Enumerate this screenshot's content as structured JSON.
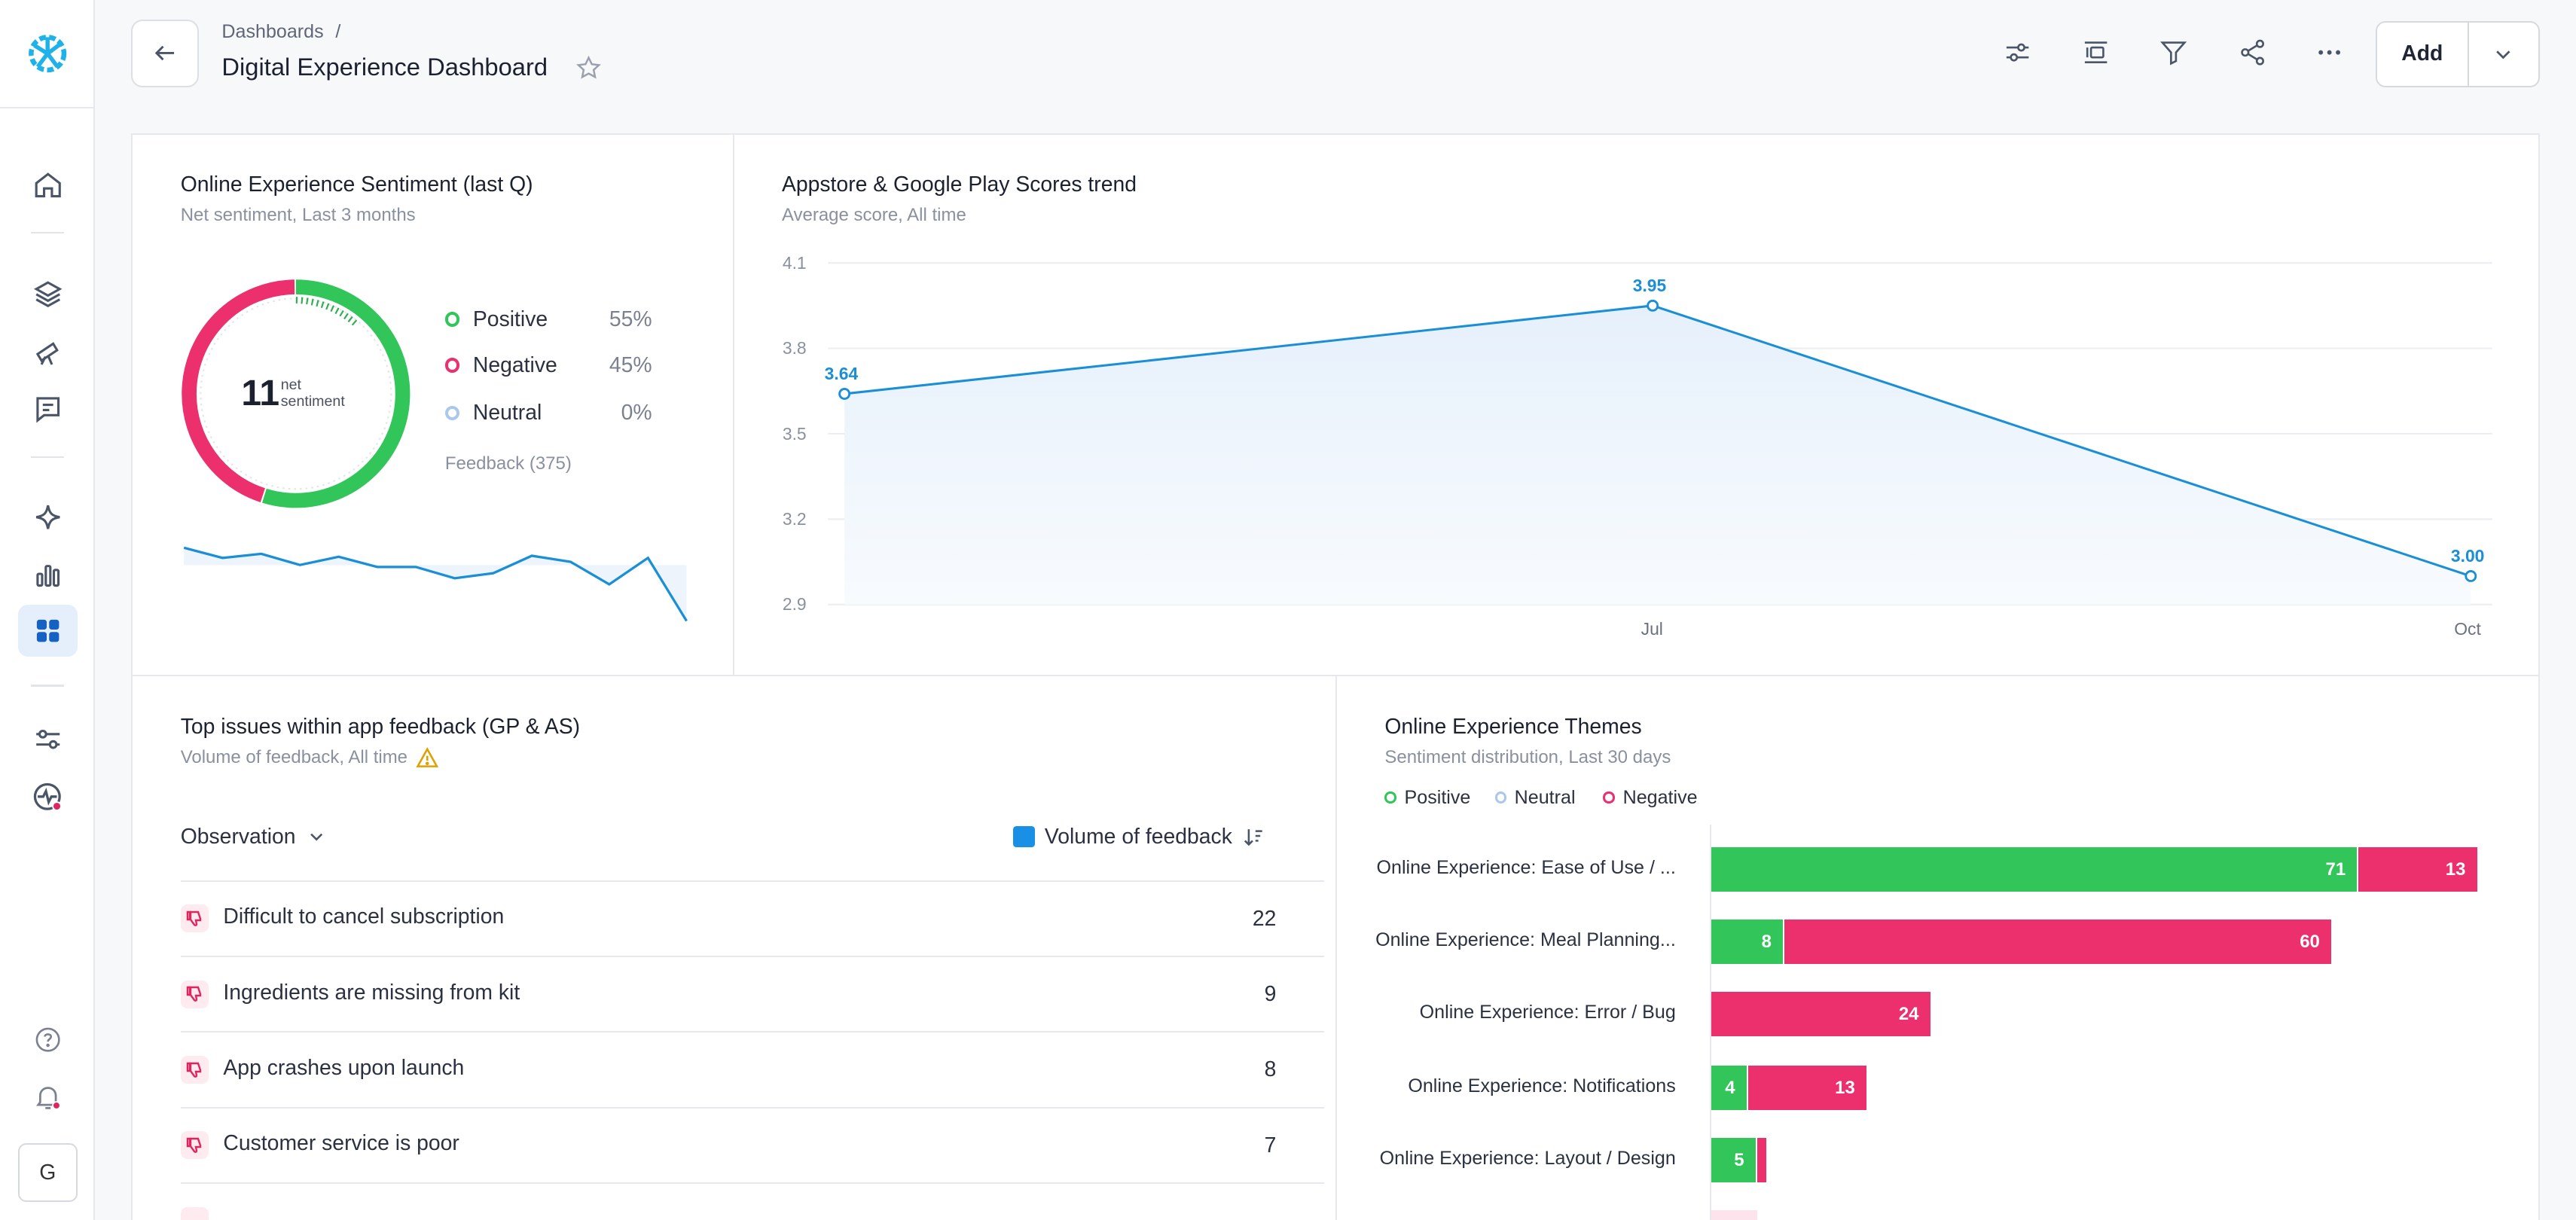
{
  "header": {
    "breadcrumb": "Dashboards",
    "breadcrumb_sep": "/",
    "title": "Digital Experience Dashboard",
    "add_label": "Add"
  },
  "sidebar": {
    "avatar_initial": "G",
    "items": [
      "home-icon",
      "layers-icon",
      "telescope-icon",
      "message-icon",
      "sparkle-icon",
      "bar-chart-icon",
      "dashboard-grid-icon",
      "sliders-icon",
      "pulse-icon",
      "help-icon",
      "bell-icon"
    ]
  },
  "sentiment": {
    "title": "Online Experience Sentiment (last Q)",
    "subtitle": "Net sentiment, Last 3 months",
    "net_value": "11",
    "net_label_1": "net",
    "net_label_2": "sentiment",
    "legend": [
      {
        "label": "Positive",
        "pct": "55%",
        "color": "#31c55a"
      },
      {
        "label": "Negative",
        "pct": "45%",
        "color": "#ec2f6d"
      },
      {
        "label": "Neutral",
        "pct": "0%",
        "color": "#a9c8ec"
      }
    ],
    "feedback": "Feedback (375)",
    "spark": [
      0.72,
      0.62,
      0.66,
      0.55,
      0.63,
      0.53,
      0.53,
      0.42,
      0.47,
      0.64,
      0.58,
      0.36,
      0.62,
      0.0
    ]
  },
  "scores": {
    "title": "Appstore & Google Play Scores trend",
    "subtitle": "Average score, All time"
  },
  "chart_data": {
    "type": "line",
    "title": "Appstore & Google Play Scores trend",
    "subtitle": "Average score, All time",
    "x": [
      "",
      "Jul",
      "Oct"
    ],
    "values": [
      3.64,
      3.95,
      3.0
    ],
    "value_labels": [
      "3.64",
      "3.95",
      "3.00"
    ],
    "yticks": [
      "4.1",
      "3.8",
      "3.5",
      "3.2",
      "2.9"
    ],
    "ylim": [
      2.9,
      4.1
    ],
    "grid": true,
    "color": "#1a8fd6"
  },
  "issues": {
    "title": "Top issues within app feedback (GP & AS)",
    "subtitle": "Volume of feedback, All time",
    "col_observation": "Observation",
    "col_volume": "Volume of feedback",
    "rows": [
      {
        "label": "Difficult to cancel subscription",
        "value": "22"
      },
      {
        "label": "Ingredients are missing from kit",
        "value": "9"
      },
      {
        "label": "App crashes upon launch",
        "value": "8"
      },
      {
        "label": "Customer service is poor",
        "value": "7"
      }
    ]
  },
  "themes": {
    "title": "Online Experience Themes",
    "subtitle": "Sentiment distribution, Last 30 days",
    "legend": [
      {
        "label": "Positive",
        "color": "#31c55a"
      },
      {
        "label": "Neutral",
        "color": "#a9c8ec"
      },
      {
        "label": "Negative",
        "color": "#ec2f6d"
      }
    ],
    "rows": [
      {
        "label": "Online Experience: Ease of Use / ...",
        "pos": 71,
        "neg": 13,
        "pos_label": "71",
        "neg_label": "13"
      },
      {
        "label": "Online Experience: Meal Planning...",
        "pos": 8,
        "neg": 60,
        "pos_label": "8",
        "neg_label": "60"
      },
      {
        "label": "Online Experience: Error / Bug",
        "pos": 0,
        "neg": 24,
        "pos_label": "",
        "neg_label": "24"
      },
      {
        "label": "Online Experience: Notifications",
        "pos": 4,
        "neg": 13,
        "pos_label": "4",
        "neg_label": "13"
      },
      {
        "label": "Online Experience: Layout / Design",
        "pos": 5,
        "neg": 1,
        "pos_label": "5",
        "neg_label": ""
      }
    ]
  }
}
